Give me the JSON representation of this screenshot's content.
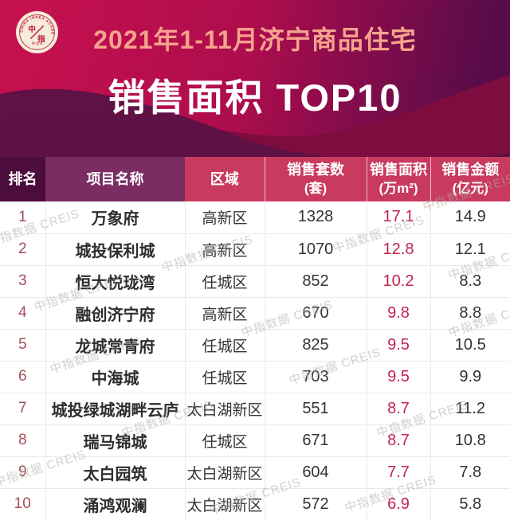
{
  "banner": {
    "title_line1": "2021年1-11月济宁商品住宅",
    "title_line2": "销售面积 TOP10",
    "logo": {
      "ring_top": "CHINA INDEX ACADEMY",
      "ring_bottom": "研 究 院",
      "center_top": "中",
      "center_bottom": "指"
    }
  },
  "table": {
    "columns": [
      {
        "label": "排名",
        "sublabel": ""
      },
      {
        "label": "项目名称",
        "sublabel": ""
      },
      {
        "label": "区域",
        "sublabel": ""
      },
      {
        "label": "销售套数",
        "sublabel": "(套)"
      },
      {
        "label": "销售面积",
        "sublabel": "(万m²)"
      },
      {
        "label": "销售金额",
        "sublabel": "(亿元)"
      }
    ],
    "rows": [
      {
        "rank": "1",
        "name": "万象府",
        "district": "高新区",
        "units": "1328",
        "area": "17.1",
        "amount": "14.9"
      },
      {
        "rank": "2",
        "name": "城投保利城",
        "district": "高新区",
        "units": "1070",
        "area": "12.8",
        "amount": "12.1"
      },
      {
        "rank": "3",
        "name": "恒大悦珑湾",
        "district": "任城区",
        "units": "852",
        "area": "10.2",
        "amount": "8.3"
      },
      {
        "rank": "4",
        "name": "融创济宁府",
        "district": "高新区",
        "units": "670",
        "area": "9.8",
        "amount": "8.8"
      },
      {
        "rank": "5",
        "name": "龙城常青府",
        "district": "任城区",
        "units": "825",
        "area": "9.5",
        "amount": "10.5"
      },
      {
        "rank": "6",
        "name": "中海城",
        "district": "任城区",
        "units": "703",
        "area": "9.5",
        "amount": "9.9"
      },
      {
        "rank": "7",
        "name": "城投绿城湖畔云庐",
        "district": "太白湖新区",
        "units": "551",
        "area": "8.7",
        "amount": "11.2"
      },
      {
        "rank": "8",
        "name": "瑞马锦城",
        "district": "任城区",
        "units": "671",
        "area": "8.7",
        "amount": "10.8"
      },
      {
        "rank": "9",
        "name": "太白园筑",
        "district": "太白湖新区",
        "units": "604",
        "area": "7.7",
        "amount": "7.8"
      },
      {
        "rank": "10",
        "name": "涌鸿观澜",
        "district": "太白湖新区",
        "units": "572",
        "area": "6.9",
        "amount": "5.8"
      }
    ]
  },
  "chart_data": {
    "type": "table",
    "title": "2021年1-11月济宁商品住宅销售面积TOP10",
    "columns": [
      "排名",
      "项目名称",
      "区域",
      "销售套数(套)",
      "销售面积(万m²)",
      "销售金额(亿元)"
    ],
    "rows": [
      [
        1,
        "万象府",
        "高新区",
        1328,
        17.1,
        14.9
      ],
      [
        2,
        "城投保利城",
        "高新区",
        1070,
        12.8,
        12.1
      ],
      [
        3,
        "恒大悦珑湾",
        "任城区",
        852,
        10.2,
        8.3
      ],
      [
        4,
        "融创济宁府",
        "高新区",
        670,
        9.8,
        8.8
      ],
      [
        5,
        "龙城常青府",
        "任城区",
        825,
        9.5,
        10.5
      ],
      [
        6,
        "中海城",
        "任城区",
        703,
        9.5,
        9.9
      ],
      [
        7,
        "城投绿城湖畔云庐",
        "太白湖新区",
        551,
        8.7,
        11.2
      ],
      [
        8,
        "瑞马锦城",
        "任城区",
        671,
        8.7,
        10.8
      ],
      [
        9,
        "太白园筑",
        "太白湖新区",
        604,
        7.7,
        7.8
      ],
      [
        10,
        "涌鸿观澜",
        "太白湖新区",
        572,
        6.9,
        5.8
      ]
    ]
  },
  "watermark": {
    "text": "中指数据 CREIS"
  },
  "colors": {
    "banner_left": "#c5104e",
    "banner_right": "#570b49",
    "mountain_left": "#5c1245",
    "mountain_right": "#7c0d3e",
    "title_line1": "#f5a38d",
    "title_line2": "#ffffff",
    "header_rank_bg": "#4c0c3c",
    "header_name_bg": "#7b2d63",
    "header_metric_bg": "#c93a5f",
    "header_text": "#ffffff",
    "rank_text": "#a24e58",
    "area_text": "#c2254f",
    "body_text": "#333333",
    "row_bg": "#ffffff",
    "grid_line": "#e9e9e9",
    "watermark": "#b4a9a4",
    "logo_bg": "#f6ecdb",
    "logo_red": "#c01535"
  }
}
